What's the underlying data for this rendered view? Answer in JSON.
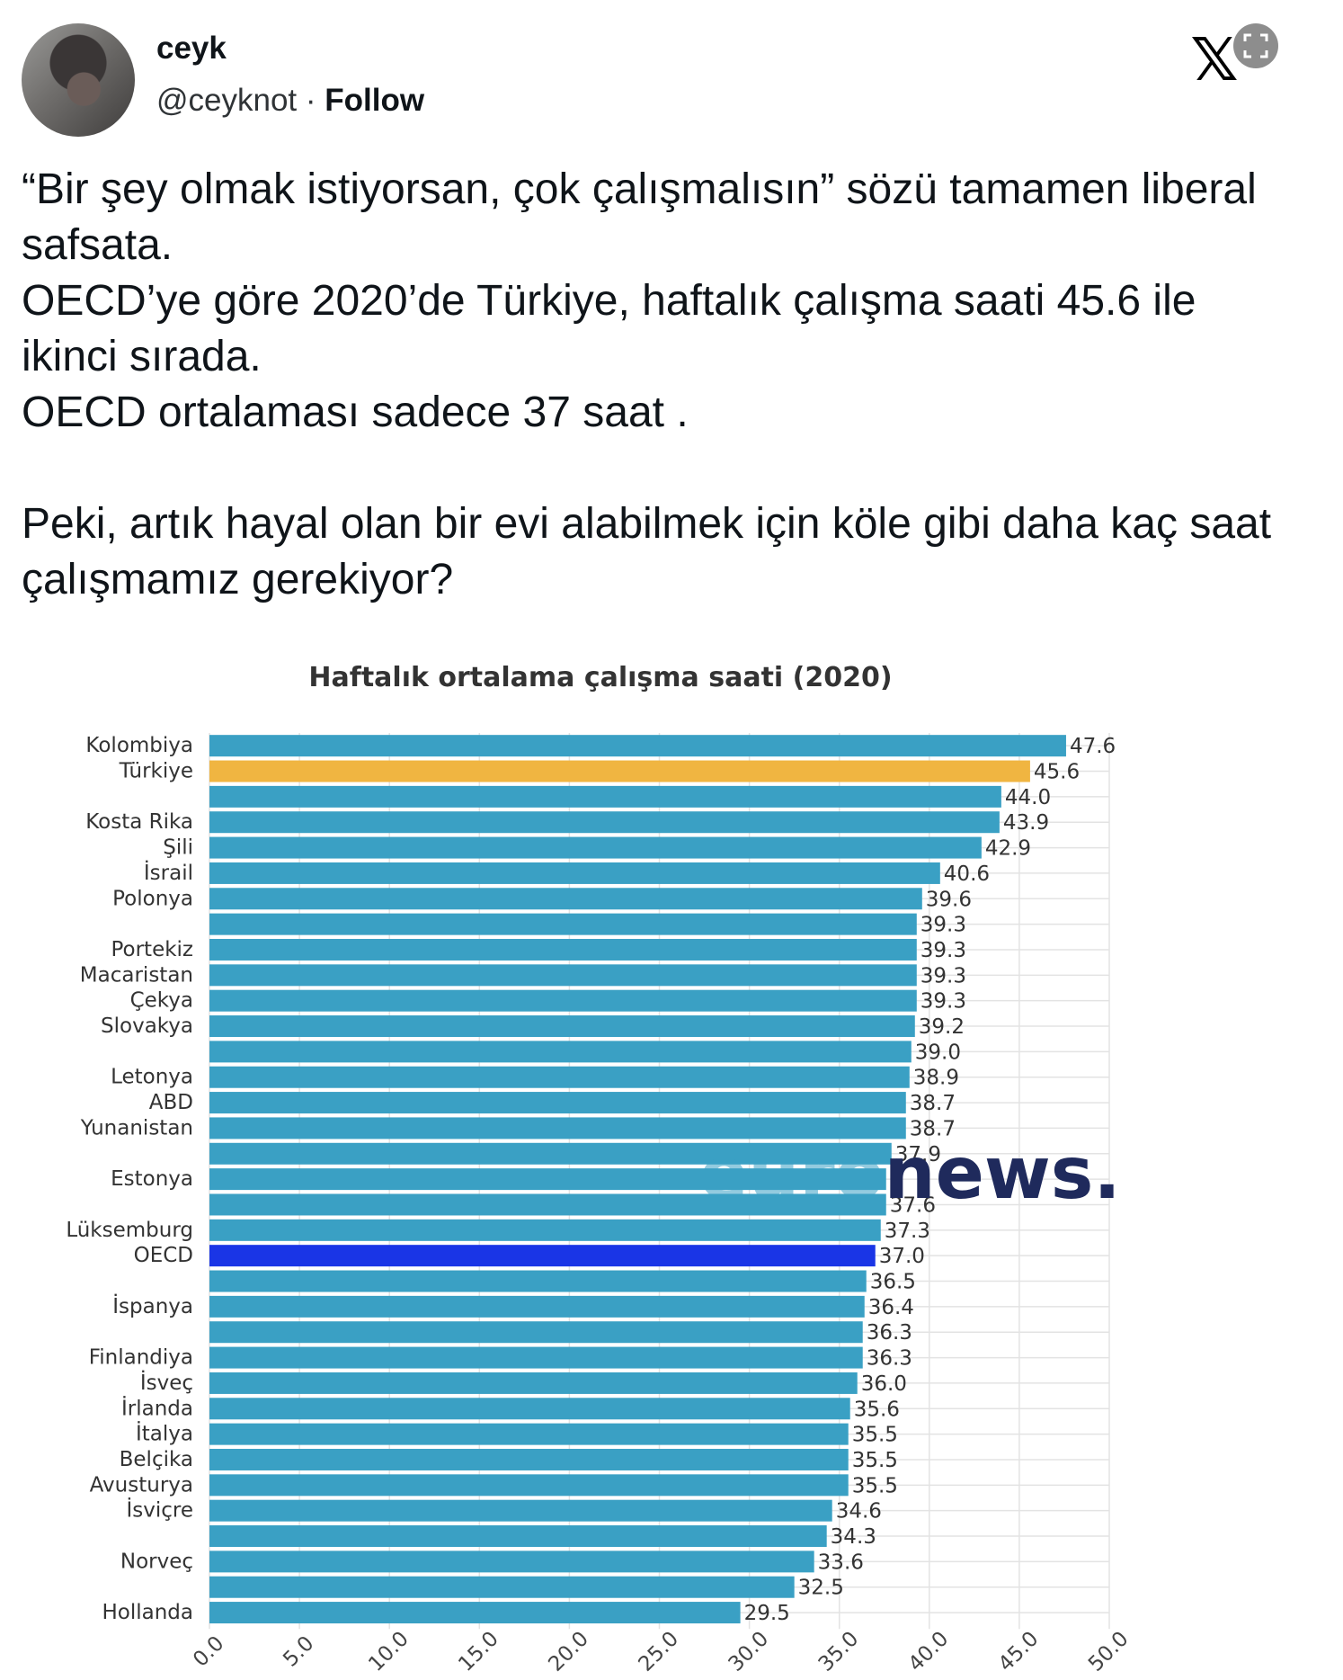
{
  "tweet": {
    "display_name": "ceyk",
    "handle": "@ceyknot",
    "separator": "·",
    "follow_label": "Follow",
    "text": "“Bir şey olmak istiyorsan, çok çalışmalısın” sözü tamamen liberal safsata.\nOECD’ye göre 2020’de Türkiye, haftalık çalışma saati 45.6 ile ikinci sırada.\nOECD ortalaması sadece 37 saat .\n\nPeki, artık hayal olan bir evi alabilmek için köle gibi daha kaç saat çalışmamız gerekiyor?"
  },
  "icons": {
    "platform": "x-logo-icon",
    "expand": "expand-icon"
  },
  "colors": {
    "bar": "#3aa0c4",
    "highlight_turkiye": "#f0b541",
    "highlight_oecd": "#1a35e6"
  },
  "watermark": {
    "part1": "euro",
    "part2": "news."
  },
  "chart_data": {
    "type": "bar",
    "orientation": "horizontal",
    "title": "Haftalık ortalama çalışma saati (2020)",
    "xlim": [
      0,
      50
    ],
    "xticks": [
      "0.0",
      "5.0",
      "10.0",
      "15.0",
      "20.0",
      "25.0",
      "30.0",
      "35.0",
      "40.0",
      "45.0",
      "50.0"
    ],
    "grid": true,
    "categories": [
      "Kolombiya",
      "Türkiye",
      "",
      "Kosta Rika",
      "Şili",
      "İsrail",
      "Polonya",
      "",
      "Portekiz",
      "Macaristan",
      "Çekya",
      "Slovakya",
      "",
      "Letonya",
      "ABD",
      "Yunanistan",
      "",
      "Estonya",
      "",
      "Lüksemburg",
      "OECD",
      "",
      "İspanya",
      "",
      "Finlandiya",
      "İsveç",
      "İrlanda",
      "İtalya",
      "Belçika",
      "Avusturya",
      "İsviçre",
      "",
      "Norveç",
      "",
      "Hollanda"
    ],
    "values": [
      47.6,
      45.6,
      44.0,
      43.9,
      42.9,
      40.6,
      39.6,
      39.3,
      39.3,
      39.3,
      39.3,
      39.2,
      39.0,
      38.9,
      38.7,
      38.7,
      37.9,
      37.6,
      37.6,
      37.3,
      37.0,
      36.5,
      36.4,
      36.3,
      36.3,
      36.0,
      35.6,
      35.5,
      35.5,
      35.5,
      34.6,
      34.3,
      33.6,
      32.5,
      29.5
    ],
    "value_labels": [
      "47.6",
      "45.6",
      "44.0",
      "43.9",
      "42.9",
      "40.6",
      "39.6",
      "39.3",
      "39.3",
      "39.3",
      "39.3",
      "39.2",
      "39.0",
      "38.9",
      "38.7",
      "38.7",
      "37.9",
      "",
      "37.6",
      "37.3",
      "37.0",
      "36.5",
      "36.4",
      "36.3",
      "36.3",
      "36.0",
      "35.6",
      "35.5",
      "35.5",
      "35.5",
      "34.6",
      "34.3",
      "33.6",
      "32.5",
      "29.5"
    ],
    "highlight": {
      "Türkiye": "#f0b541",
      "OECD": "#1a35e6"
    }
  }
}
